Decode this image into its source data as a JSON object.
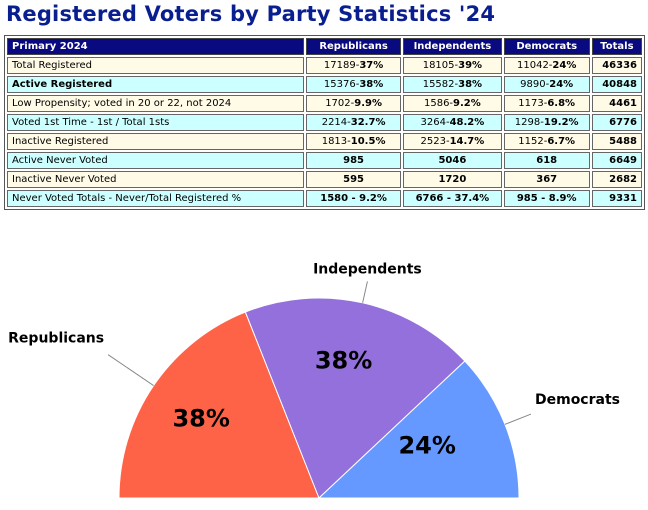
{
  "title": "Registered Voters by Party Statistics '24",
  "table": {
    "headers": [
      "Primary 2024",
      "Republicans",
      "Independents",
      "Democrats",
      "Totals"
    ],
    "rows": [
      {
        "label": "Total Registered",
        "rep": [
          "17189-",
          "37%"
        ],
        "ind": [
          "18105-",
          "39%"
        ],
        "dem": [
          "11042-",
          "24%"
        ],
        "total": "46336",
        "bg": "cream",
        "bold": false
      },
      {
        "label": "Active Registered",
        "rep": [
          "15376-",
          "38%"
        ],
        "ind": [
          "15582-",
          "38%"
        ],
        "dem": [
          "9890-",
          "24%"
        ],
        "total": "40848",
        "bg": "cyan",
        "bold": true
      },
      {
        "label": "Low Propensity; voted in 20 or 22, not 2024",
        "rep": [
          "1702-",
          "9.9%"
        ],
        "ind": [
          "1586-",
          "9.2%"
        ],
        "dem": [
          "1173-",
          "6.8%"
        ],
        "total": "4461",
        "bg": "cream",
        "bold": false
      },
      {
        "label": "Voted 1st Time - 1st / Total 1sts",
        "rep": [
          "2214-",
          "32.7%"
        ],
        "ind": [
          "3264-",
          "48.2%"
        ],
        "dem": [
          "1298-",
          "19.2%"
        ],
        "total": "6776",
        "bg": "cyan",
        "bold": false
      },
      {
        "label": "Inactive Registered",
        "rep": [
          "1813-",
          "10.5%"
        ],
        "ind": [
          "2523-",
          "14.7%"
        ],
        "dem": [
          "1152-",
          "6.7%"
        ],
        "total": "5488",
        "bg": "cream",
        "bold": false
      },
      {
        "label": "Active Never Voted",
        "rep": [
          "985",
          ""
        ],
        "ind": [
          "5046",
          ""
        ],
        "dem": [
          "618",
          ""
        ],
        "total": "6649",
        "bg": "cyan",
        "bold": false
      },
      {
        "label": "Inactive Never Voted",
        "rep": [
          "595",
          ""
        ],
        "ind": [
          "1720",
          ""
        ],
        "dem": [
          "367",
          ""
        ],
        "total": "2682",
        "bg": "cream",
        "bold": false
      },
      {
        "label": "Never Voted Totals - Never/Total Registered %",
        "rep": [
          "1580 - 9.2%",
          ""
        ],
        "ind": [
          "6766 - 37.4%",
          ""
        ],
        "dem": [
          "985 - 8.9%",
          ""
        ],
        "total": "9331",
        "bg": "cyan",
        "bold": false
      }
    ]
  },
  "chart_data": {
    "type": "pie",
    "subtype": "semicircle",
    "categories": [
      "Republicans",
      "Independents",
      "Democrats"
    ],
    "values": [
      38,
      38,
      24
    ],
    "labels": [
      "38%",
      "38%",
      "24%"
    ],
    "colors": [
      "#ff6347",
      "#9370db",
      "#6699ff"
    ]
  }
}
